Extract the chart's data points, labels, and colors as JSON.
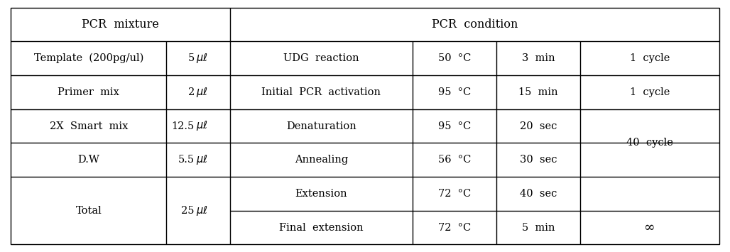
{
  "bg_color": "#ffffff",
  "border_color": "#000000",
  "text_color": "#000000",
  "font_size": 10.5,
  "header_font_size": 11.5,
  "col1_header": "PCR  mixture",
  "col2_header": "PCR  condition",
  "mixture_rows": [
    {
      "label": "Template  (200pg/ul)",
      "value": "5"
    },
    {
      "label": "Primer  mix",
      "value": "2"
    },
    {
      "label": "2X  Smart  mix",
      "value": "12.5"
    },
    {
      "label": "D.W",
      "value": "5.5"
    },
    {
      "label": "Total",
      "value": "25"
    }
  ],
  "condition_rows": [
    {
      "step": "UDG  reaction",
      "temp": "50  °C",
      "time": "3  min",
      "cycle": "1  cycle"
    },
    {
      "step": "Initial  PCR  activation",
      "temp": "95  °C",
      "time": "15  min",
      "cycle": "1  cycle"
    },
    {
      "step": "Denaturation",
      "temp": "95  °C",
      "time": "20  sec",
      "cycle": ""
    },
    {
      "step": "Annealing",
      "temp": "56  °C",
      "time": "30  sec",
      "cycle": "40  cycle"
    },
    {
      "step": "Extension",
      "temp": "72  °C",
      "time": "40  sec",
      "cycle": ""
    },
    {
      "step": "Final  extension",
      "temp": "72  °C",
      "time": "5  min",
      "cycle": "∞"
    }
  ],
  "figsize": [
    10.28,
    3.55
  ],
  "dpi": 100
}
